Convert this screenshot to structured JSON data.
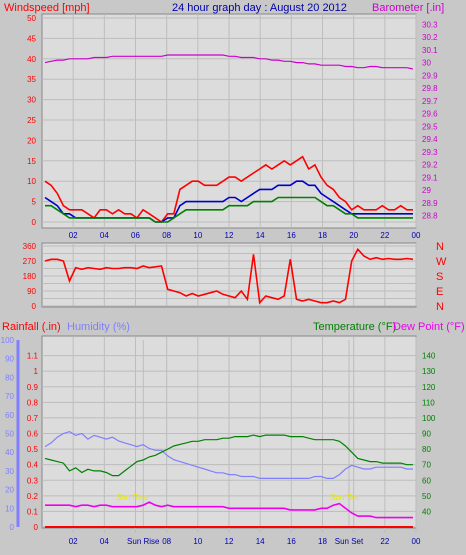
{
  "colors": {
    "background": "#c8c8c8",
    "panel": "#dcdcdc",
    "grid": "#bdbdbd",
    "windspeed": "#ff0000",
    "gust": "#0000c8",
    "average": "#008000",
    "barometer": "#cc00cc",
    "direction": "#ff0000",
    "rain": "#ff0000",
    "humidity": "#7f7fff",
    "temperature": "#008000",
    "dewpoint": "#ee00ee",
    "sun_marker": "#e8e800"
  },
  "header": {
    "left": "Windspeed [mph]",
    "center": "24 hour graph day : August 20 2012",
    "right": "Barometer [.in]"
  },
  "lower_header": {
    "rain": "Rainfall (.in)",
    "humidity": "Humidity (%)",
    "temperature": "Temperature (°F)",
    "dewpoint": "Dew Point (°F)"
  },
  "sun": {
    "rise_label": "Sun Rise",
    "set_label": "Sun Set",
    "rise_tick": "Sun Rise",
    "set_tick": "Sun Set"
  },
  "chart_data": [
    {
      "type": "line",
      "panel": "wind_baro",
      "x_ticks": [
        "02",
        "04",
        "06",
        "08",
        "10",
        "12",
        "14",
        "16",
        "18",
        "20",
        "22",
        "00"
      ],
      "ylim_left": [
        0,
        50
      ],
      "left_ticks": [
        "0",
        "5",
        "10",
        "15",
        "20",
        "25",
        "30",
        "35",
        "40",
        "45",
        "50"
      ],
      "ylim_right": [
        28.75,
        30.35
      ],
      "right_ticks": [
        "28.8",
        "28.9",
        "29",
        "29.1",
        "29.2",
        "29.3",
        "29.4",
        "29.5",
        "29.6",
        "29.7",
        "29.8",
        "29.9",
        "30",
        "30.1",
        "30.2",
        "30.3"
      ],
      "series": [
        {
          "role": "gust",
          "values": [
            10,
            9,
            7,
            4,
            3,
            3,
            3,
            2,
            1,
            3,
            3,
            2,
            3,
            2,
            2,
            1,
            3,
            2,
            1,
            0,
            2,
            2,
            8,
            9,
            10,
            10,
            9,
            9,
            9,
            10,
            11,
            11,
            10,
            11,
            12,
            13,
            14,
            13,
            14,
            15,
            14,
            15,
            16,
            13,
            14,
            11,
            9,
            8,
            6,
            5,
            3,
            4,
            3,
            3,
            3,
            4,
            3,
            3,
            4,
            3,
            3
          ]
        },
        {
          "role": "speed",
          "values": [
            6,
            5,
            4,
            2,
            2,
            1,
            1,
            1,
            1,
            1,
            1,
            1,
            1,
            1,
            1,
            1,
            1,
            1,
            0,
            0,
            1,
            1,
            4,
            5,
            5,
            5,
            5,
            5,
            5,
            5,
            6,
            6,
            5,
            6,
            7,
            8,
            8,
            8,
            9,
            9,
            9,
            10,
            10,
            9,
            9,
            7,
            6,
            5,
            4,
            3,
            2,
            2,
            2,
            2,
            2,
            2,
            2,
            2,
            2,
            2,
            2
          ]
        },
        {
          "role": "average",
          "values": [
            4,
            4,
            3,
            2,
            1,
            1,
            1,
            1,
            1,
            1,
            1,
            1,
            1,
            1,
            1,
            1,
            1,
            1,
            0,
            0,
            0,
            1,
            2,
            3,
            3,
            3,
            3,
            3,
            3,
            3,
            4,
            4,
            4,
            4,
            5,
            5,
            5,
            5,
            6,
            6,
            6,
            6,
            6,
            6,
            6,
            5,
            4,
            4,
            3,
            2,
            2,
            1,
            1,
            1,
            1,
            1,
            1,
            1,
            1,
            1,
            1
          ]
        },
        {
          "role": "barometer",
          "values": [
            30.0,
            30.01,
            30.02,
            30.02,
            30.03,
            30.03,
            30.03,
            30.03,
            30.04,
            30.04,
            30.04,
            30.05,
            30.05,
            30.05,
            30.05,
            30.05,
            30.05,
            30.05,
            30.05,
            30.05,
            30.06,
            30.06,
            30.06,
            30.06,
            30.06,
            30.06,
            30.06,
            30.06,
            30.06,
            30.06,
            30.05,
            30.05,
            30.04,
            30.04,
            30.04,
            30.03,
            30.03,
            30.02,
            30.02,
            30.01,
            30.01,
            30.0,
            30.0,
            29.99,
            29.99,
            29.98,
            29.98,
            29.98,
            29.98,
            29.97,
            29.97,
            29.96,
            29.96,
            29.97,
            29.97,
            29.96,
            29.96,
            29.96,
            29.96,
            29.96,
            29.95
          ]
        }
      ]
    },
    {
      "type": "line",
      "panel": "direction",
      "ylim": [
        0,
        360
      ],
      "left_ticks": [
        "0",
        "90",
        "180",
        "270",
        "360"
      ],
      "mid_ticks": [
        "45",
        "135",
        "225",
        "315"
      ],
      "compass": [
        "N",
        "W",
        "S",
        "E",
        "N"
      ],
      "series": [
        {
          "role": "direction",
          "values": [
            270,
            280,
            280,
            270,
            150,
            230,
            220,
            230,
            225,
            220,
            230,
            225,
            225,
            230,
            230,
            225,
            240,
            230,
            235,
            240,
            100,
            90,
            80,
            60,
            75,
            60,
            70,
            80,
            90,
            70,
            60,
            50,
            90,
            40,
            310,
            20,
            60,
            50,
            40,
            60,
            280,
            40,
            30,
            40,
            30,
            20,
            20,
            30,
            20,
            40,
            270,
            340,
            300,
            280,
            290,
            280,
            285,
            280,
            280,
            285,
            280
          ]
        }
      ]
    },
    {
      "type": "line",
      "panel": "rain_hum_temp",
      "ylim_rain": [
        0,
        1.2
      ],
      "rain_ticks": [
        "0",
        "0.1",
        "0.2",
        "0.3",
        "0.4",
        "0.5",
        "0.6",
        "0.7",
        "0.8",
        "0.9",
        "1",
        "1.1"
      ],
      "ylim_humidity": [
        0,
        100
      ],
      "humidity_ticks": [
        "0",
        "10",
        "20",
        "30",
        "40",
        "50",
        "60",
        "70",
        "80",
        "90",
        "100"
      ],
      "ylim_temp": [
        30,
        150
      ],
      "temp_ticks": [
        "40",
        "50",
        "60",
        "70",
        "80",
        "90",
        "100",
        "110",
        "120",
        "130",
        "140"
      ],
      "series": [
        {
          "role": "rain",
          "values": [
            0,
            0,
            0,
            0,
            0,
            0,
            0,
            0,
            0,
            0,
            0,
            0,
            0,
            0,
            0,
            0,
            0,
            0,
            0,
            0,
            0,
            0,
            0,
            0,
            0,
            0,
            0,
            0,
            0,
            0,
            0,
            0,
            0,
            0,
            0,
            0,
            0,
            0,
            0,
            0,
            0,
            0,
            0,
            0,
            0,
            0,
            0,
            0,
            0,
            0,
            0,
            0,
            0,
            0,
            0,
            0,
            0,
            0,
            0,
            0,
            0
          ]
        },
        {
          "role": "humidity",
          "values": [
            43,
            45,
            48,
            50,
            51,
            49,
            50,
            47,
            49,
            48,
            47,
            48,
            46,
            45,
            44,
            43,
            44,
            42,
            41,
            41,
            38,
            36,
            35,
            34,
            33,
            32,
            31,
            30,
            29,
            29,
            28,
            28,
            27,
            27,
            27,
            26,
            26,
            26,
            26,
            26,
            26,
            26,
            26,
            26,
            27,
            27,
            26,
            26,
            28,
            31,
            33,
            32,
            31,
            31,
            32,
            32,
            32,
            32,
            32,
            31,
            31
          ]
        },
        {
          "role": "temperature",
          "values": [
            74,
            73,
            72,
            71,
            66,
            68,
            65,
            67,
            66,
            66,
            65,
            63,
            63,
            66,
            69,
            72,
            73,
            75,
            76,
            78,
            80,
            82,
            83,
            84,
            85,
            85,
            86,
            86,
            86,
            87,
            87,
            88,
            88,
            88,
            89,
            88,
            89,
            89,
            89,
            89,
            88,
            88,
            88,
            87,
            86,
            86,
            86,
            86,
            85,
            82,
            78,
            74,
            73,
            72,
            72,
            71,
            71,
            71,
            71,
            70,
            70
          ]
        },
        {
          "role": "dewpoint",
          "values": [
            44,
            44,
            44,
            44,
            44,
            43,
            44,
            44,
            43,
            44,
            44,
            43,
            43,
            43,
            43,
            43,
            44,
            46,
            44,
            43,
            44,
            43,
            43,
            43,
            43,
            43,
            43,
            43,
            43,
            43,
            42,
            42,
            42,
            42,
            42,
            42,
            42,
            42,
            42,
            42,
            41,
            41,
            41,
            41,
            41,
            42,
            42,
            44,
            45,
            42,
            39,
            37,
            37,
            37,
            36,
            36,
            36,
            36,
            36,
            36,
            36
          ]
        }
      ],
      "sun_rise_hour": 6.5,
      "sun_set_hour": 19.7
    }
  ]
}
